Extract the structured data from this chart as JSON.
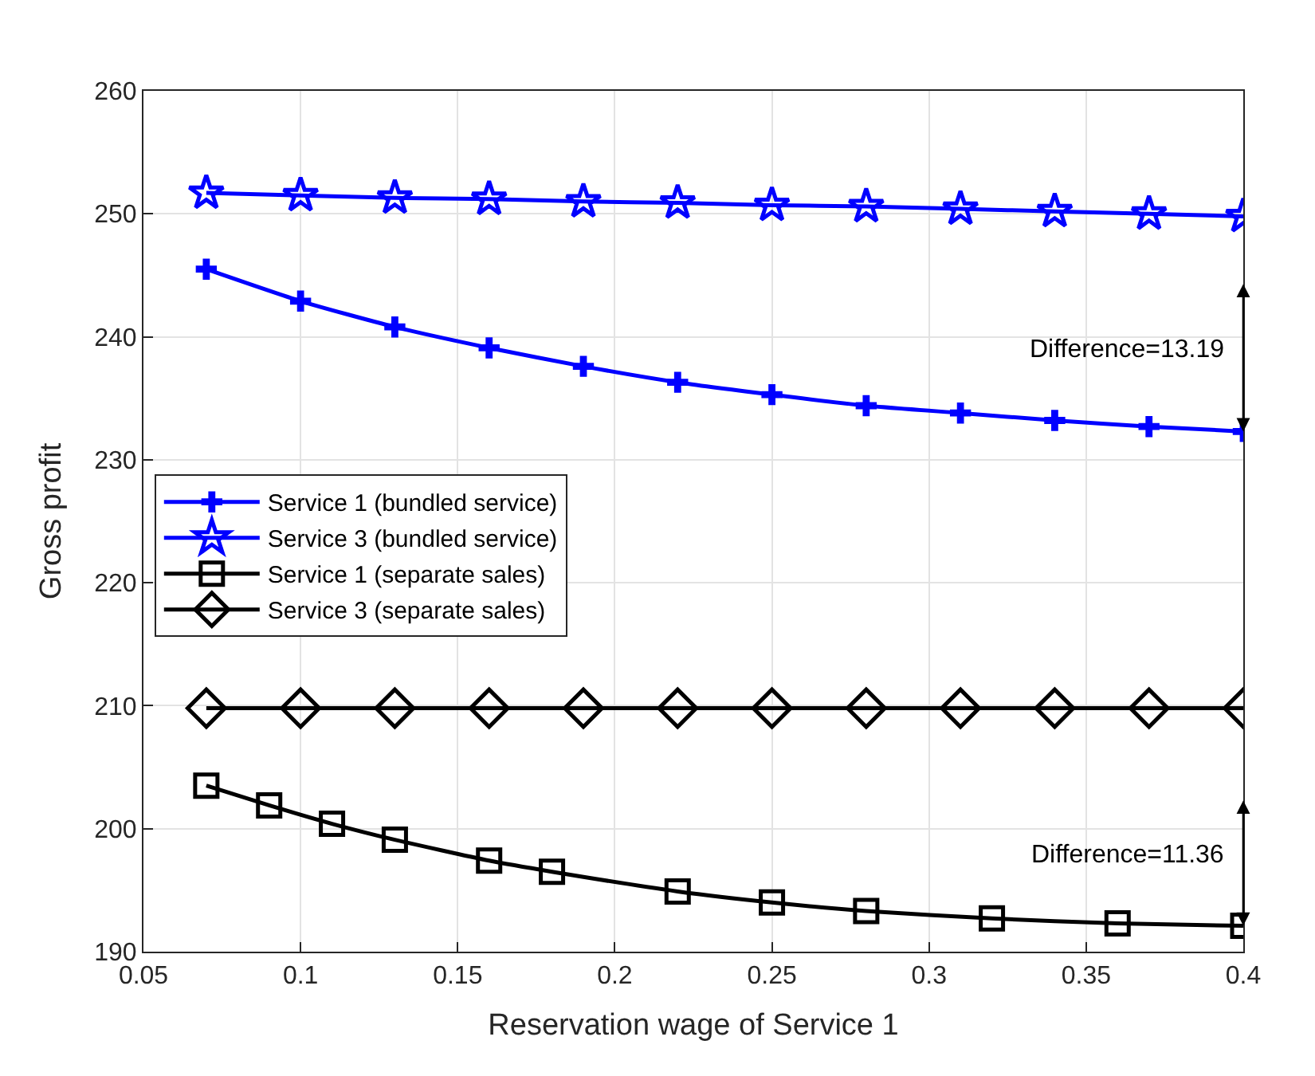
{
  "chart_data": {
    "type": "line",
    "xlabel": "Reservation wage of Service 1",
    "ylabel": "Gross profit",
    "xlim": [
      0.05,
      0.4
    ],
    "xticks": [
      0.05,
      0.1,
      0.15,
      0.2,
      0.25,
      0.3,
      0.35,
      0.4
    ],
    "ylim": [
      190,
      260
    ],
    "yticks": [
      190,
      200,
      210,
      220,
      230,
      240,
      250,
      260
    ],
    "grid": true,
    "legend": "left",
    "line_style": "solid",
    "series": [
      {
        "name": "Service 1 (bundled service)",
        "color": "#0000ff",
        "marker": "cross",
        "x": [
          0.07,
          0.1,
          0.13,
          0.16,
          0.19,
          0.22,
          0.25,
          0.28,
          0.31,
          0.34,
          0.37,
          0.4
        ],
        "values": [
          245.5,
          242.9,
          240.8,
          239.1,
          237.6,
          236.3,
          235.3,
          234.4,
          233.8,
          233.2,
          232.7,
          232.3
        ]
      },
      {
        "name": "Service 3 (bundled service)",
        "color": "#0000ff",
        "marker": "star",
        "x": [
          0.07,
          0.1,
          0.13,
          0.16,
          0.19,
          0.22,
          0.25,
          0.28,
          0.31,
          0.34,
          0.37,
          0.4
        ],
        "values": [
          251.7,
          251.5,
          251.3,
          251.2,
          251.0,
          250.9,
          250.7,
          250.6,
          250.4,
          250.2,
          250.0,
          249.8
        ]
      },
      {
        "name": "Service 1 (separate sales)",
        "color": "#000000",
        "marker": "square",
        "x": [
          0.07,
          0.09,
          0.11,
          0.13,
          0.16,
          0.18,
          0.22,
          0.25,
          0.28,
          0.32,
          0.36,
          0.4
        ],
        "values": [
          203.5,
          201.9,
          200.4,
          199.1,
          197.4,
          196.5,
          194.9,
          194.0,
          193.3,
          192.7,
          192.3,
          192.1
        ]
      },
      {
        "name": "Service 3 (separate sales)",
        "color": "#000000",
        "marker": "diamond",
        "x": [
          0.07,
          0.1,
          0.13,
          0.16,
          0.19,
          0.22,
          0.25,
          0.28,
          0.31,
          0.34,
          0.37,
          0.4
        ],
        "values": [
          209.8,
          209.8,
          209.8,
          209.8,
          209.8,
          209.8,
          209.8,
          209.8,
          209.8,
          209.8,
          209.8,
          209.8
        ]
      }
    ],
    "annotations": [
      "Difference=13.19",
      "Difference=11.36"
    ]
  }
}
